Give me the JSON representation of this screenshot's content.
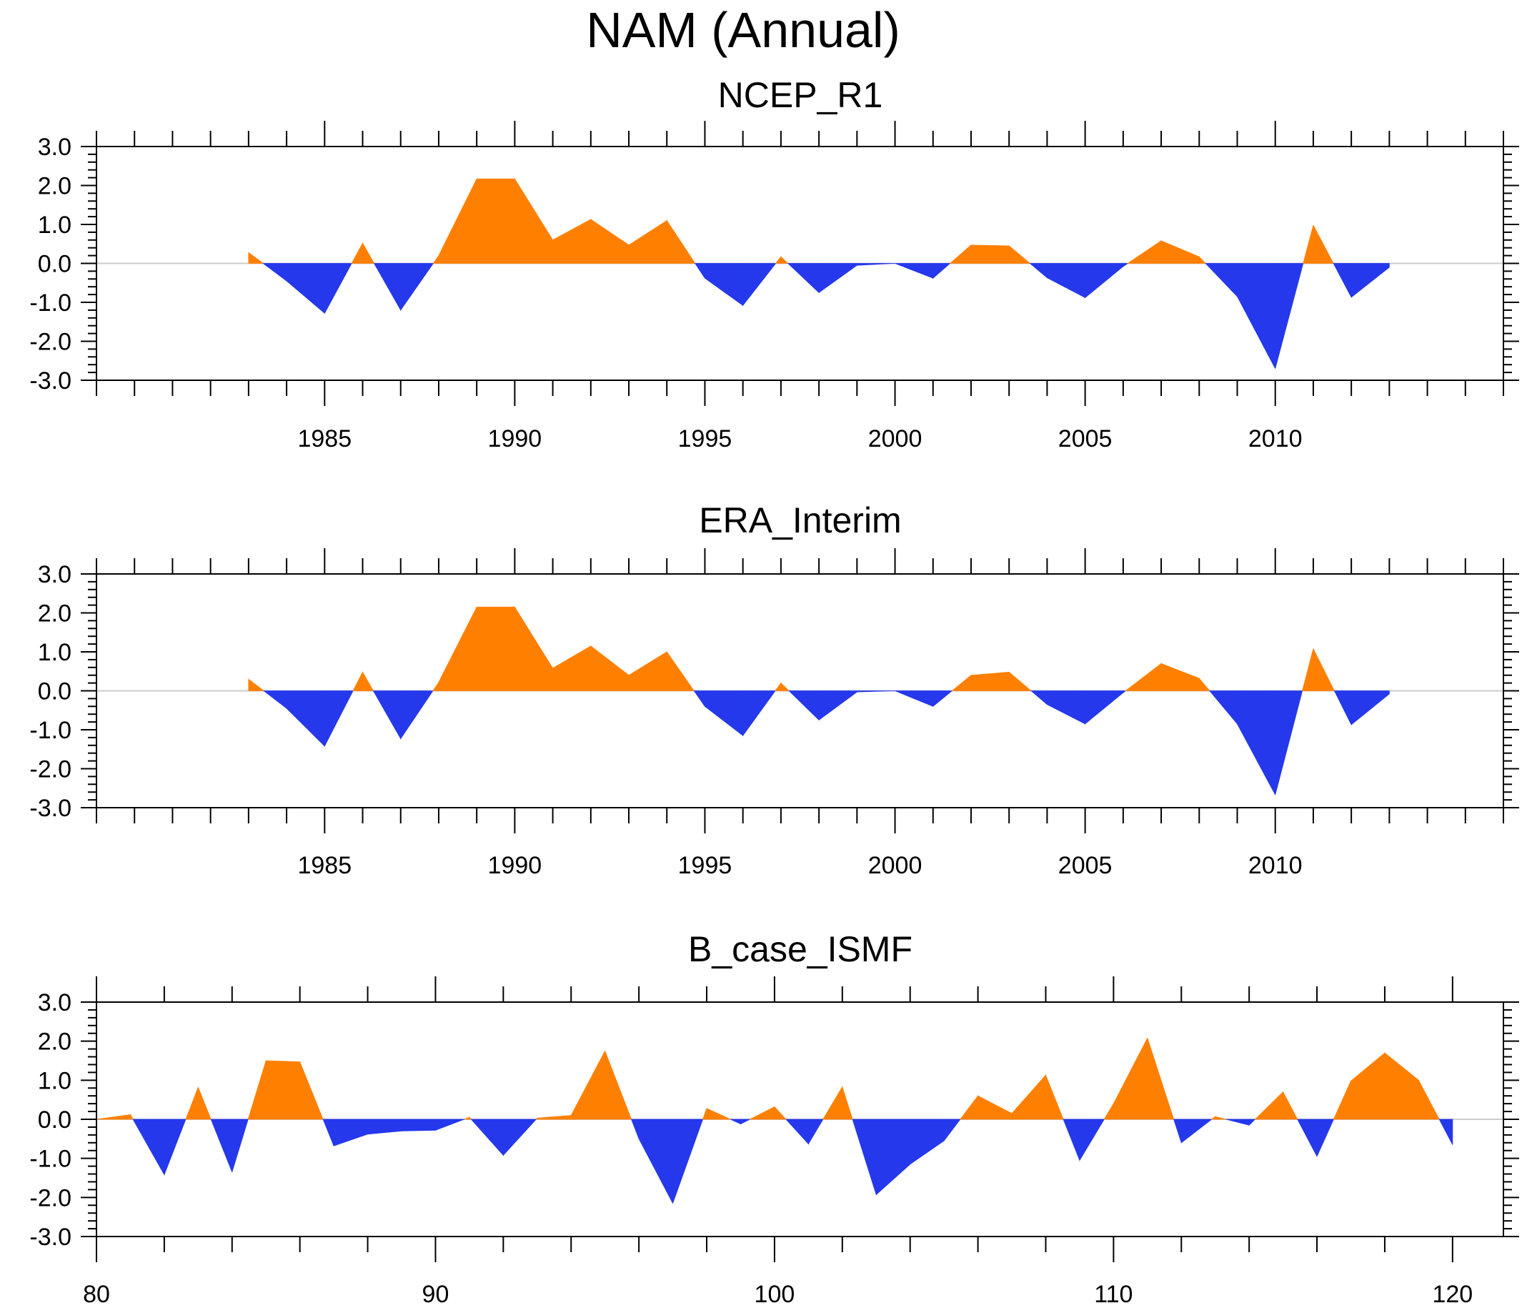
{
  "title": "NAM (Annual)",
  "colors": {
    "positive": "#ff8000",
    "negative": "#2538ec",
    "axis": "#000000",
    "zero_line": "#cccccc"
  },
  "chart_data": [
    {
      "type": "area",
      "title": "NCEP_R1",
      "xlabel": "",
      "ylabel": "",
      "xlim": [
        1979,
        2016
      ],
      "ylim": [
        -3,
        3
      ],
      "x_ticks": [
        1985,
        1990,
        1995,
        2000,
        2005,
        2010
      ],
      "x_tick_labels": [
        "1985",
        "1990",
        "1995",
        "2000",
        "2005",
        "2010"
      ],
      "y_ticks": [
        -3,
        -2,
        -1,
        0,
        1,
        2,
        3
      ],
      "y_tick_labels": [
        "-3.0",
        "-2.0",
        "-1.0",
        "0.0",
        "1.0",
        "2.0",
        "3.0"
      ],
      "x": [
        1983,
        1984,
        1985,
        1986,
        1987,
        1988,
        1989,
        1990,
        1991,
        1992,
        1993,
        1994,
        1995,
        1996,
        1997,
        1998,
        1999,
        2000,
        2001,
        2002,
        2003,
        2004,
        2005,
        2006,
        2007,
        2008,
        2009,
        2010,
        2011,
        2012,
        2013
      ],
      "values": [
        0.28,
        -0.45,
        -1.28,
        0.52,
        -1.2,
        0.2,
        2.17,
        2.17,
        0.6,
        1.13,
        0.47,
        1.1,
        -0.38,
        -1.08,
        0.17,
        -0.75,
        -0.05,
        0.0,
        -0.38,
        0.47,
        0.45,
        -0.37,
        -0.88,
        -0.08,
        0.58,
        0.17,
        -0.85,
        -2.7,
        0.98,
        -0.87,
        -0.1
      ]
    },
    {
      "type": "area",
      "title": "ERA_Interim",
      "xlabel": "",
      "ylabel": "",
      "xlim": [
        1979,
        2016
      ],
      "ylim": [
        -3,
        3
      ],
      "x_ticks": [
        1985,
        1990,
        1995,
        2000,
        2005,
        2010
      ],
      "x_tick_labels": [
        "1985",
        "1990",
        "1995",
        "2000",
        "2005",
        "2010"
      ],
      "y_ticks": [
        -3,
        -2,
        -1,
        0,
        1,
        2,
        3
      ],
      "y_tick_labels": [
        "-3.0",
        "-2.0",
        "-1.0",
        "0.0",
        "1.0",
        "2.0",
        "3.0"
      ],
      "x": [
        1983,
        1984,
        1985,
        1986,
        1987,
        1988,
        1989,
        1990,
        1991,
        1992,
        1993,
        1994,
        1995,
        1996,
        1997,
        1998,
        1999,
        2000,
        2001,
        2002,
        2003,
        2004,
        2005,
        2006,
        2007,
        2008,
        2009,
        2010,
        2011,
        2012,
        2013
      ],
      "values": [
        0.3,
        -0.45,
        -1.42,
        0.48,
        -1.23,
        0.22,
        2.15,
        2.15,
        0.58,
        1.15,
        0.4,
        1.0,
        -0.4,
        -1.15,
        0.2,
        -0.75,
        -0.03,
        0.0,
        -0.4,
        0.4,
        0.48,
        -0.35,
        -0.85,
        -0.05,
        0.7,
        0.32,
        -0.85,
        -2.67,
        1.08,
        -0.87,
        -0.08
      ]
    },
    {
      "type": "area",
      "title": "B_case_ISMF",
      "xlabel": "",
      "ylabel": "",
      "xlim": [
        80,
        121.5
      ],
      "ylim": [
        -3,
        3
      ],
      "x_ticks": [
        80,
        90,
        100,
        110,
        120
      ],
      "x_tick_labels": [
        "80",
        "90",
        "100",
        "110",
        "120"
      ],
      "y_ticks": [
        -3,
        -2,
        -1,
        0,
        1,
        2,
        3
      ],
      "y_tick_labels": [
        "-3.0",
        "-2.0",
        "-1.0",
        "0.0",
        "1.0",
        "2.0",
        "3.0"
      ],
      "x": [
        80,
        81,
        82,
        83,
        84,
        85,
        86,
        87,
        88,
        89,
        90,
        91,
        92,
        93,
        94,
        95,
        96,
        97,
        98,
        99,
        100,
        101,
        102,
        103,
        104,
        105,
        106,
        107,
        108,
        109,
        110,
        111,
        112,
        113,
        114,
        115,
        116,
        117,
        118,
        119,
        120
      ],
      "values": [
        0.0,
        0.12,
        -1.42,
        0.82,
        -1.35,
        1.5,
        1.47,
        -0.68,
        -0.38,
        -0.3,
        -0.28,
        0.05,
        -0.92,
        0.03,
        0.1,
        1.75,
        -0.5,
        -2.15,
        0.28,
        -0.12,
        0.32,
        -0.63,
        0.83,
        -1.93,
        -1.15,
        -0.55,
        0.6,
        0.15,
        1.13,
        -1.05,
        0.4,
        2.08,
        -0.6,
        0.07,
        -0.15,
        0.7,
        -0.95,
        0.98,
        1.7,
        1.0,
        -0.65
      ]
    }
  ]
}
